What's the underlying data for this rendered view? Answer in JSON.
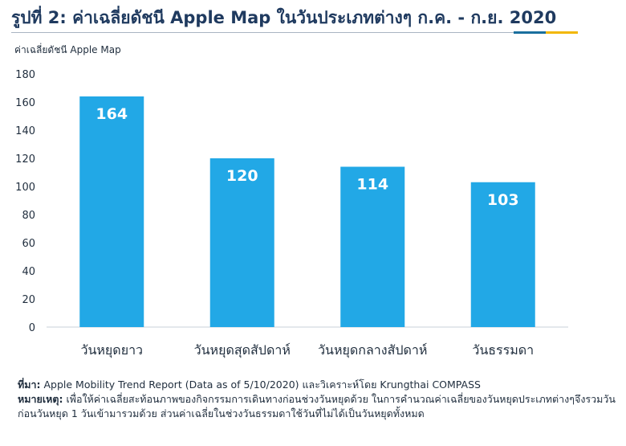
{
  "title": "รูปที่ 2: ค่าเฉลี่ยดัชนี Apple Map ในวันประเภทต่างๆ ก.ค. - ก.ย. 2020",
  "colors": {
    "bar": "#22a8e6",
    "bar_label": "#ffffff",
    "title": "#1f3a5f",
    "accent_blue": "#1a6f9e",
    "accent_yellow": "#f2b705"
  },
  "chart_data": {
    "type": "bar",
    "ylabel": "ค่าเฉลี่ยดัชนี Apple Map",
    "xlabel": "",
    "categories": [
      "วันหยุดยาว",
      "วันหยุดสุดสัปดาห์",
      "วันหยุดกลางสัปดาห์",
      "วันธรรมดา"
    ],
    "values": [
      164,
      120,
      114,
      103
    ],
    "value_labels": [
      "164",
      "120",
      "114",
      "103"
    ],
    "ylim": [
      0,
      180
    ],
    "yticks": [
      0,
      20,
      40,
      60,
      80,
      100,
      120,
      140,
      160,
      180
    ],
    "grid": false
  },
  "notes": {
    "source_label": "ที่มา:",
    "source_text": "Apple Mobility Trend Report (Data as of 5/10/2020) และวิเคราะห์โดย Krungthai COMPASS",
    "remark_label": "หมายเหตุ:",
    "remark_text": "เพื่อให้ค่าเฉลี่ยสะท้อนภาพของกิจกรรมการเดินทางก่อนช่วงวันหยุดด้วย ในการคำนวณค่าเฉลี่ยของวันหยุดประเภทต่างๆจึงรวมวันก่อนวันหยุด 1 วันเข้ามารวมด้วย ส่วนค่าเฉลี่ยในช่วงวันธรรมดาใช้วันที่ไม่ได้เป็นวันหยุดทั้งหมด"
  }
}
